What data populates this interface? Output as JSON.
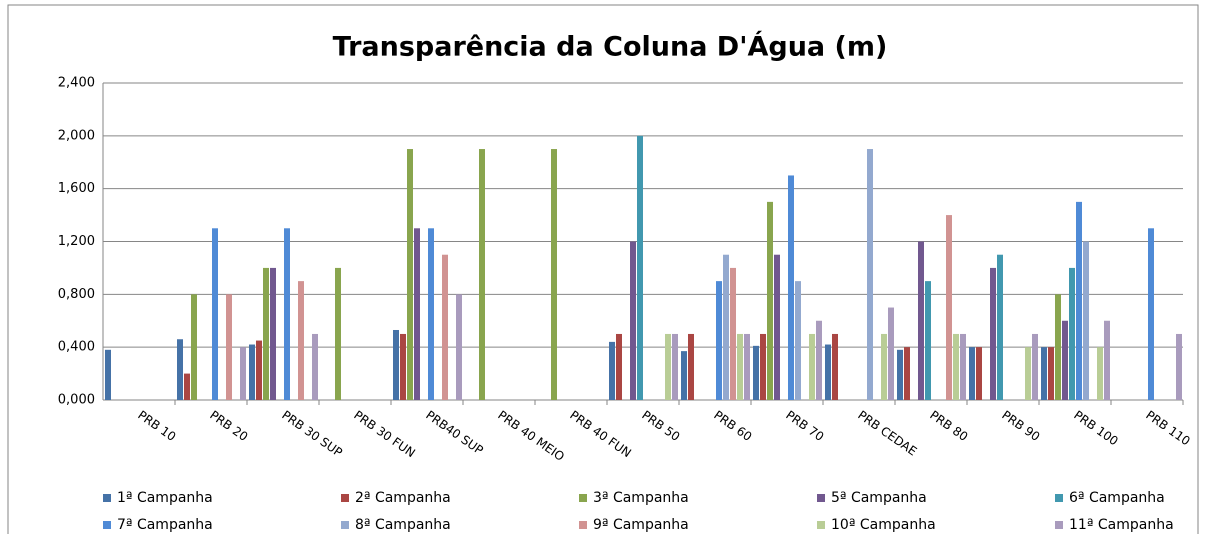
{
  "chart_data": {
    "type": "bar",
    "title": "Transparência da Coluna D'Água (m)",
    "categories": [
      "PRB 10",
      "PRB 20",
      "PRB 30 SUP",
      "PRB 30 FUN",
      "PRB40 SUP",
      "PRB 40 MEIO",
      "PRB 40 FUN",
      "PRB 50",
      "PRB 60",
      "PRB 70",
      "PRB CEDAE",
      "PRB 80",
      "PRB 90",
      "PRB 100",
      "PRB 110"
    ],
    "series": [
      {
        "name": "1ª Campanha",
        "color": "#4572a7",
        "values": [
          0.38,
          0.46,
          0.42,
          null,
          0.53,
          null,
          null,
          0.44,
          0.37,
          0.41,
          0.42,
          0.38,
          0.4,
          0.4,
          null
        ]
      },
      {
        "name": "2ª Campanha",
        "color": "#aa4643",
        "values": [
          null,
          0.2,
          0.45,
          null,
          0.5,
          null,
          null,
          0.5,
          0.5,
          0.5,
          0.5,
          0.4,
          0.4,
          0.4,
          null
        ]
      },
      {
        "name": "3ª Campanha",
        "color": "#89a54e",
        "values": [
          null,
          0.8,
          1.0,
          1.0,
          1.9,
          1.9,
          1.9,
          null,
          null,
          1.5,
          null,
          null,
          null,
          0.8,
          null
        ]
      },
      {
        "name": "5ª Campanha",
        "color": "#71588f",
        "values": [
          null,
          null,
          1.0,
          null,
          1.3,
          null,
          null,
          1.2,
          null,
          1.1,
          null,
          1.2,
          1.0,
          0.6,
          null
        ]
      },
      {
        "name": "6ª Campanha",
        "color": "#4198af",
        "values": [
          null,
          null,
          null,
          null,
          null,
          null,
          null,
          2.0,
          null,
          null,
          null,
          0.9,
          1.1,
          1.0,
          null
        ]
      },
      {
        "name": "7ª Campanha",
        "color": "#4f8ad6",
        "values": [
          null,
          1.3,
          1.3,
          null,
          1.3,
          null,
          null,
          null,
          0.9,
          1.7,
          null,
          null,
          null,
          1.5,
          1.3
        ]
      },
      {
        "name": "8ª Campanha",
        "color": "#93a9cf",
        "values": [
          null,
          null,
          null,
          null,
          null,
          null,
          null,
          null,
          1.1,
          0.9,
          1.9,
          null,
          null,
          1.2,
          null
        ]
      },
      {
        "name": "9ª Campanha",
        "color": "#d19392",
        "values": [
          null,
          0.8,
          0.9,
          null,
          1.1,
          null,
          null,
          null,
          1.0,
          null,
          null,
          1.4,
          null,
          null,
          null
        ]
      },
      {
        "name": "10ª Campanha",
        "color": "#b9cd96",
        "values": [
          null,
          null,
          null,
          null,
          null,
          null,
          null,
          0.5,
          0.5,
          0.5,
          0.5,
          0.5,
          0.4,
          0.4,
          null
        ]
      },
      {
        "name": "11ª Campanha",
        "color": "#a99bbd",
        "values": [
          null,
          0.4,
          0.5,
          null,
          0.8,
          null,
          null,
          0.5,
          0.5,
          0.6,
          0.7,
          0.5,
          0.5,
          0.6,
          0.5
        ]
      }
    ],
    "ylim": [
      0,
      2.4
    ],
    "yticks": [
      {
        "value": 0,
        "label": "0,000"
      },
      {
        "value": 0.4,
        "label": "0,400"
      },
      {
        "value": 0.8,
        "label": "0,800"
      },
      {
        "value": 1.2,
        "label": "1,200"
      },
      {
        "value": 1.6,
        "label": "1,600"
      },
      {
        "value": 2.0,
        "label": "2,000"
      },
      {
        "value": 2.4,
        "label": "2,400"
      }
    ],
    "grid": true,
    "legend": "bottom"
  }
}
